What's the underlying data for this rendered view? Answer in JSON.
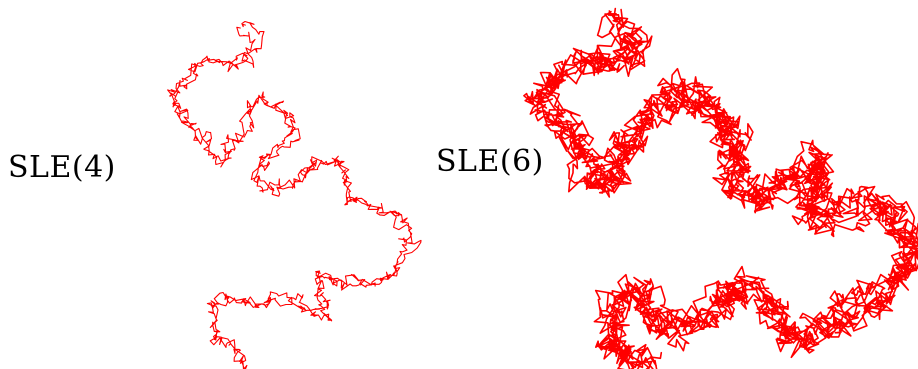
{
  "figure": {
    "background": "#ffffff",
    "curve_color": "#ff0000",
    "panels": [
      {
        "id": "left",
        "label": "SLE(4)",
        "kappa": 4
      },
      {
        "id": "right",
        "label": "SLE(6)",
        "kappa": 6
      }
    ]
  }
}
